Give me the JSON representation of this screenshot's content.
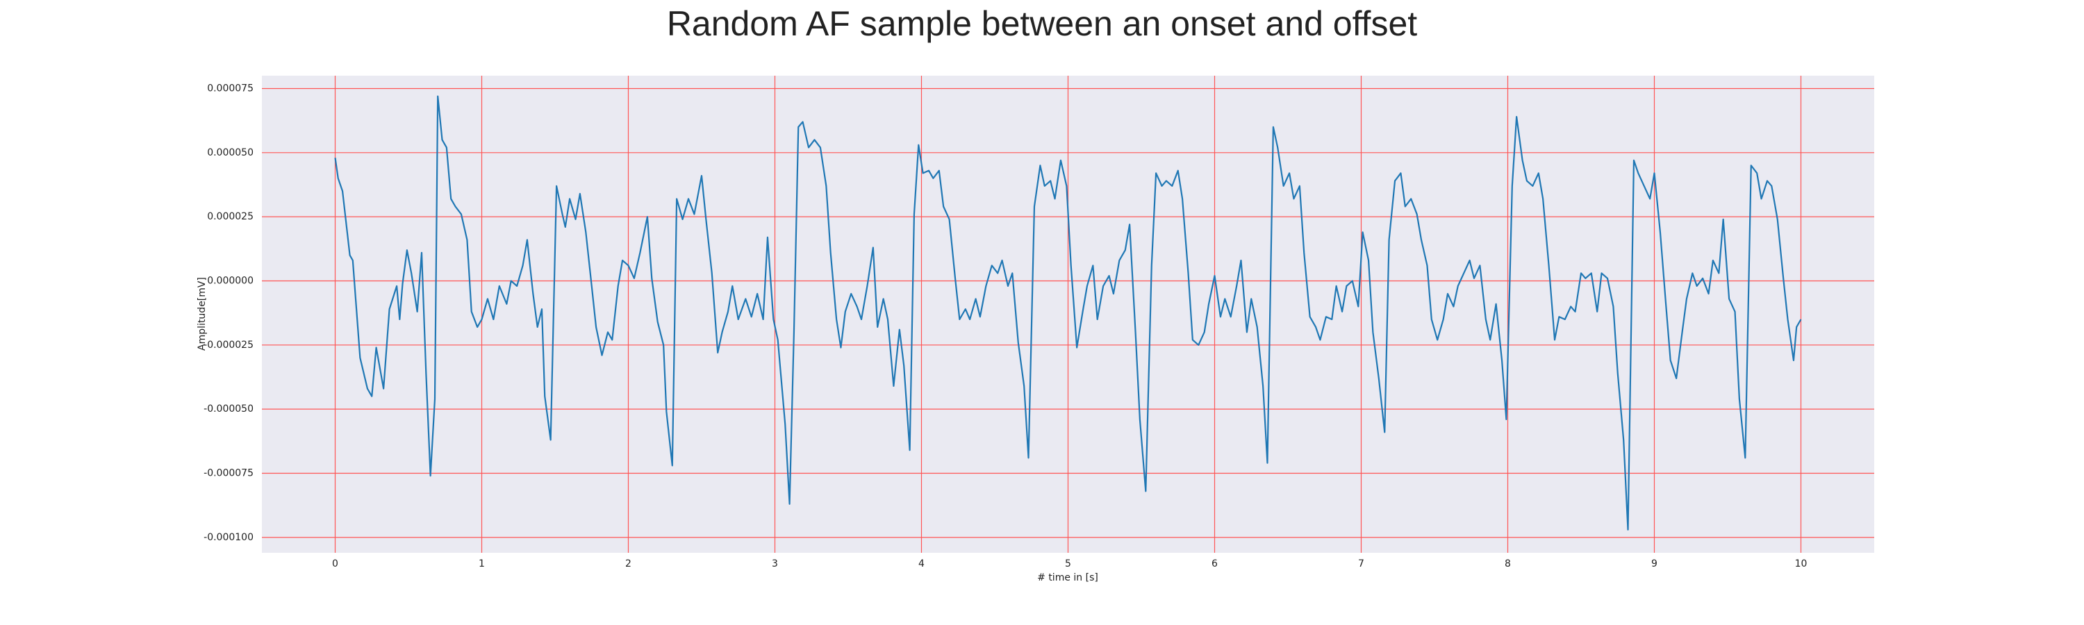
{
  "chart_data": {
    "type": "line",
    "title": "Random AF sample between an onset and offset",
    "xlabel": "# time in [s]",
    "ylabel": "Amplitude[mV]",
    "x": [
      0,
      0.02,
      0.05,
      0.1,
      0.12,
      0.17,
      0.22,
      0.25,
      0.28,
      0.33,
      0.37,
      0.42,
      0.44,
      0.46,
      0.49,
      0.52,
      0.56,
      0.59,
      0.62,
      0.65,
      0.68,
      0.7,
      0.73,
      0.76,
      0.79,
      0.82,
      0.86,
      0.9,
      0.93,
      0.97,
      1.0,
      1.04,
      1.08,
      1.12,
      1.17,
      1.2,
      1.24,
      1.28,
      1.31,
      1.35,
      1.38,
      1.41,
      1.43,
      1.47,
      1.51,
      1.55,
      1.57,
      1.6,
      1.64,
      1.67,
      1.71,
      1.75,
      1.78,
      1.82,
      1.86,
      1.89,
      1.93,
      1.96,
      2.0,
      2.04,
      2.08,
      2.13,
      2.16,
      2.2,
      2.24,
      2.26,
      2.3,
      2.33,
      2.37,
      2.41,
      2.45,
      2.5,
      2.53,
      2.57,
      2.61,
      2.64,
      2.68,
      2.71,
      2.75,
      2.8,
      2.84,
      2.88,
      2.92,
      2.95,
      2.99,
      3.02,
      3.07,
      3.1,
      3.13,
      3.16,
      3.19,
      3.23,
      3.27,
      3.31,
      3.35,
      3.38,
      3.42,
      3.45,
      3.48,
      3.52,
      3.56,
      3.59,
      3.63,
      3.67,
      3.7,
      3.74,
      3.77,
      3.81,
      3.85,
      3.88,
      3.92,
      3.95,
      3.98,
      4.01,
      4.05,
      4.08,
      4.12,
      4.15,
      4.19,
      4.23,
      4.26,
      4.3,
      4.33,
      4.37,
      4.4,
      4.44,
      4.48,
      4.52,
      4.55,
      4.59,
      4.62,
      4.66,
      4.7,
      4.73,
      4.77,
      4.81,
      4.84,
      4.88,
      4.91,
      4.95,
      4.99,
      5.02,
      5.06,
      5.1,
      5.13,
      5.17,
      5.2,
      5.24,
      5.28,
      5.31,
      5.35,
      5.39,
      5.42,
      5.46,
      5.49,
      5.53,
      5.57,
      5.6,
      5.64,
      5.67,
      5.71,
      5.75,
      5.78,
      5.82,
      5.85,
      5.89,
      5.93,
      5.96,
      6.0,
      6.04,
      6.07,
      6.11,
      6.15,
      6.18,
      6.22,
      6.25,
      6.29,
      6.33,
      6.36,
      6.4,
      6.43,
      6.47,
      6.51,
      6.54,
      6.58,
      6.61,
      6.65,
      6.69,
      6.72,
      6.76,
      6.8,
      6.83,
      6.87,
      6.9,
      6.94,
      6.98,
      7.01,
      7.05,
      7.08,
      7.12,
      7.16,
      7.19,
      7.23,
      7.27,
      7.3,
      7.34,
      7.38,
      7.41,
      7.45,
      7.48,
      7.52,
      7.56,
      7.59,
      7.63,
      7.66,
      7.7,
      7.74,
      7.77,
      7.81,
      7.85,
      7.88,
      7.92,
      7.96,
      7.99,
      8.03,
      8.06,
      8.1,
      8.13,
      8.17,
      8.21,
      8.24,
      8.28,
      8.32,
      8.35,
      8.39,
      8.43,
      8.46,
      8.5,
      8.53,
      8.57,
      8.61,
      8.64,
      8.68,
      8.72,
      8.75,
      8.79,
      8.82,
      8.86,
      8.89,
      8.93,
      8.97,
      9.0,
      9.04,
      9.08,
      9.11,
      9.15,
      9.19,
      9.22,
      9.26,
      9.29,
      9.33,
      9.37,
      9.4,
      9.44,
      9.47,
      9.51,
      9.55,
      9.58,
      9.62,
      9.66,
      9.7,
      9.73,
      9.77,
      9.8,
      9.84,
      9.88,
      9.91,
      9.95,
      9.97,
      10.0
    ],
    "series": [
      {
        "color": "#1f77b4",
        "values": [
          4.8e-05,
          4e-05,
          3.5e-05,
          1e-05,
          8e-06,
          -3e-05,
          -4.2e-05,
          -4.5e-05,
          -2.6e-05,
          -4.2e-05,
          -1.1e-05,
          -2e-06,
          -1.5e-05,
          -1e-06,
          1.2e-05,
          3e-06,
          -1.2e-05,
          1.1e-05,
          -3.6e-05,
          -7.6e-05,
          -4.6e-05,
          7.2e-05,
          5.5e-05,
          5.2e-05,
          3.2e-05,
          2.9e-05,
          2.6e-05,
          1.6e-05,
          -1.2e-05,
          -1.8e-05,
          -1.5e-05,
          -7e-06,
          -1.5e-05,
          -2e-06,
          -9e-06,
          0,
          -2e-06,
          6e-06,
          1.6e-05,
          -5e-06,
          -1.8e-05,
          -1.1e-05,
          -4.5e-05,
          -6.2e-05,
          3.7e-05,
          2.6e-05,
          2.1e-05,
          3.2e-05,
          2.4e-05,
          3.4e-05,
          1.9e-05,
          -2e-06,
          -1.8e-05,
          -2.9e-05,
          -2e-05,
          -2.3e-05,
          -2e-06,
          8e-06,
          6e-06,
          1e-06,
          1.1e-05,
          2.5e-05,
          1e-06,
          -1.6e-05,
          -2.5e-05,
          -5.1e-05,
          -7.2e-05,
          3.2e-05,
          2.4e-05,
          3.2e-05,
          2.6e-05,
          4.1e-05,
          2.4e-05,
          3e-06,
          -2.8e-05,
          -2e-05,
          -1.2e-05,
          -2e-06,
          -1.5e-05,
          -7e-06,
          -1.4e-05,
          -5e-06,
          -1.5e-05,
          1.7e-05,
          -1.5e-05,
          -2.3e-05,
          -5.6e-05,
          -8.7e-05,
          -2e-05,
          6e-05,
          6.2e-05,
          5.2e-05,
          5.5e-05,
          5.2e-05,
          3.7e-05,
          1.1e-05,
          -1.5e-05,
          -2.6e-05,
          -1.2e-05,
          -5e-06,
          -1e-05,
          -1.5e-05,
          -2e-06,
          1.3e-05,
          -1.8e-05,
          -7e-06,
          -1.5e-05,
          -4.1e-05,
          -1.9e-05,
          -3.3e-05,
          -6.6e-05,
          2.6e-05,
          5.3e-05,
          4.2e-05,
          4.3e-05,
          4e-05,
          4.3e-05,
          2.9e-05,
          2.4e-05,
          1e-06,
          -1.5e-05,
          -1.1e-05,
          -1.5e-05,
          -7e-06,
          -1.4e-05,
          -2e-06,
          6e-06,
          3e-06,
          8e-06,
          -2e-06,
          3e-06,
          -2.4e-05,
          -4.1e-05,
          -6.9e-05,
          2.9e-05,
          4.5e-05,
          3.7e-05,
          3.9e-05,
          3.2e-05,
          4.7e-05,
          3.7e-05,
          6e-06,
          -2.6e-05,
          -1.2e-05,
          -2e-06,
          6e-06,
          -1.5e-05,
          -2e-06,
          2e-06,
          -5e-06,
          8e-06,
          1.2e-05,
          2.2e-05,
          -2e-05,
          -5.4e-05,
          -8.2e-05,
          6e-06,
          4.2e-05,
          3.7e-05,
          3.9e-05,
          3.7e-05,
          4.3e-05,
          3.2e-05,
          3e-06,
          -2.3e-05,
          -2.5e-05,
          -2e-05,
          -9e-06,
          2e-06,
          -1.4e-05,
          -7e-06,
          -1.4e-05,
          -2e-06,
          8e-06,
          -2e-05,
          -7e-06,
          -1.8e-05,
          -4.1e-05,
          -7.1e-05,
          6e-05,
          5.2e-05,
          3.7e-05,
          4.2e-05,
          3.2e-05,
          3.7e-05,
          1.1e-05,
          -1.4e-05,
          -1.8e-05,
          -2.3e-05,
          -1.4e-05,
          -1.5e-05,
          -2e-06,
          -1.2e-05,
          -2e-06,
          0,
          -1e-05,
          1.9e-05,
          8e-06,
          -2e-05,
          -3.8e-05,
          -5.9e-05,
          1.6e-05,
          3.9e-05,
          4.2e-05,
          2.9e-05,
          3.2e-05,
          2.6e-05,
          1.6e-05,
          6e-06,
          -1.5e-05,
          -2.3e-05,
          -1.5e-05,
          -5e-06,
          -1e-05,
          -2e-06,
          3e-06,
          8e-06,
          1e-06,
          6e-06,
          -1.5e-05,
          -2.3e-05,
          -9e-06,
          -3.1e-05,
          -5.4e-05,
          3.7e-05,
          6.4e-05,
          4.7e-05,
          3.9e-05,
          3.7e-05,
          4.2e-05,
          3.2e-05,
          6e-06,
          -2.3e-05,
          -1.4e-05,
          -1.5e-05,
          -1e-05,
          -1.2e-05,
          3e-06,
          1e-06,
          3e-06,
          -1.2e-05,
          3e-06,
          1e-06,
          -1e-05,
          -3.6e-05,
          -6.2e-05,
          -9.7e-05,
          4.7e-05,
          4.2e-05,
          3.7e-05,
          3.2e-05,
          4.2e-05,
          1.9e-05,
          -1e-05,
          -3.1e-05,
          -3.8e-05,
          -2e-05,
          -7e-06,
          3e-06,
          -2e-06,
          1e-06,
          -5e-06,
          8e-06,
          3e-06,
          2.4e-05,
          -7e-06,
          -1.2e-05,
          -4.6e-05,
          -6.9e-05,
          4.5e-05,
          4.2e-05,
          3.2e-05,
          3.9e-05,
          3.7e-05,
          2.4e-05,
          1e-06,
          -1.5e-05,
          -3.1e-05,
          -1.8e-05,
          -1.5e-05
        ]
      }
    ],
    "xlim": [
      -0.5,
      10.5
    ],
    "ylim": [
      -0.000106,
      8e-05
    ],
    "xticks": [
      0,
      1,
      2,
      3,
      4,
      5,
      6,
      7,
      8,
      9,
      10
    ],
    "yticks": [
      {
        "value": -0.0001,
        "label": "-0.000100"
      },
      -7.5e-05,
      {
        "value": -5e-05,
        "label": "-0.000050"
      },
      -2.5e-05,
      {
        "value": 0,
        "label": "0.000000"
      },
      2.5e-05,
      {
        "value": 5e-05,
        "label": "0.000050"
      },
      7.5e-05
    ],
    "grid": true
  }
}
